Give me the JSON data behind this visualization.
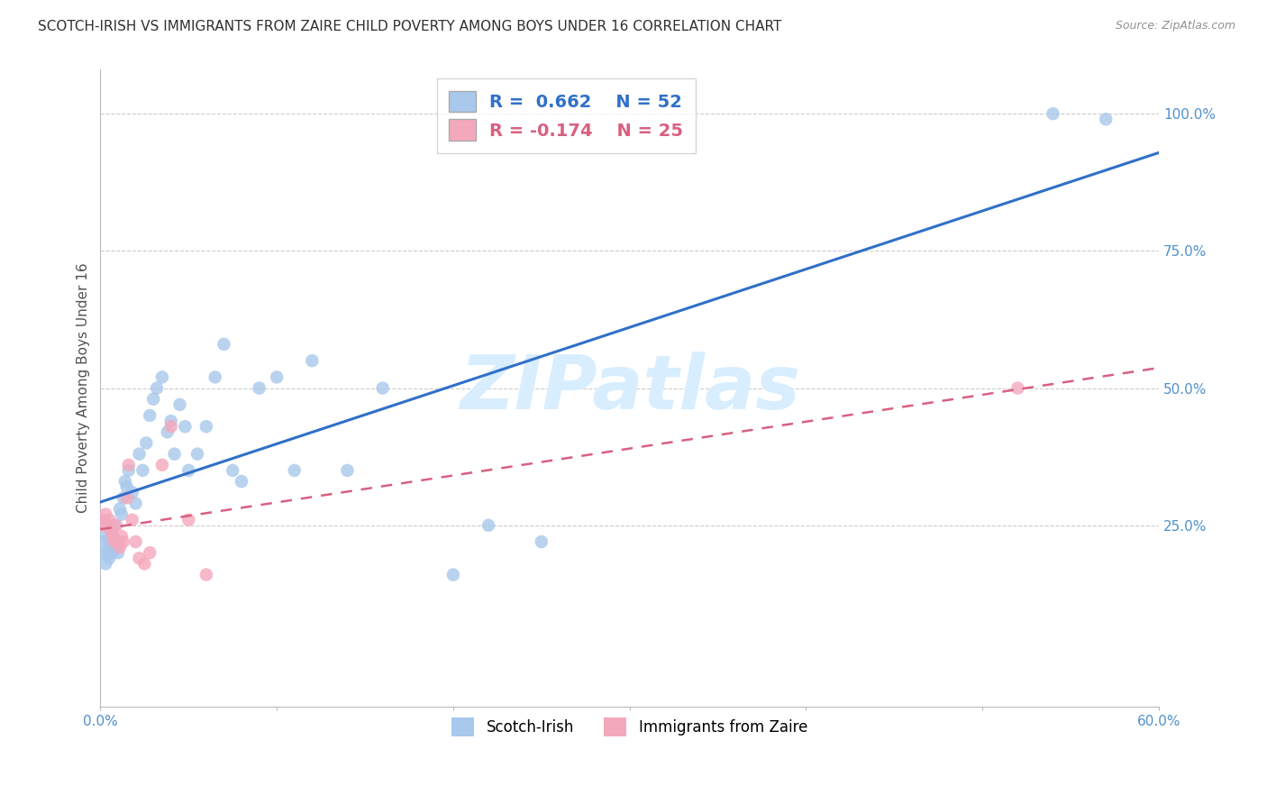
{
  "title": "SCOTCH-IRISH VS IMMIGRANTS FROM ZAIRE CHILD POVERTY AMONG BOYS UNDER 16 CORRELATION CHART",
  "source": "Source: ZipAtlas.com",
  "ylabel": "Child Poverty Among Boys Under 16",
  "xlim": [
    0.0,
    0.6
  ],
  "ylim": [
    -0.08,
    1.08
  ],
  "xticks": [
    0.0,
    0.1,
    0.2,
    0.3,
    0.4,
    0.5,
    0.6
  ],
  "yticks_right": [
    0.25,
    0.5,
    0.75,
    1.0
  ],
  "ytick_labels_right": [
    "25.0%",
    "50.0%",
    "75.0%",
    "100.0%"
  ],
  "r_blue": 0.662,
  "n_blue": 52,
  "r_pink": -0.174,
  "n_pink": 25,
  "scotch_irish_x": [
    0.001,
    0.002,
    0.003,
    0.003,
    0.004,
    0.005,
    0.005,
    0.006,
    0.006,
    0.007,
    0.007,
    0.008,
    0.009,
    0.01,
    0.011,
    0.012,
    0.013,
    0.014,
    0.015,
    0.016,
    0.018,
    0.02,
    0.022,
    0.024,
    0.026,
    0.028,
    0.03,
    0.032,
    0.035,
    0.038,
    0.04,
    0.042,
    0.045,
    0.048,
    0.05,
    0.055,
    0.06,
    0.065,
    0.07,
    0.075,
    0.08,
    0.09,
    0.1,
    0.11,
    0.12,
    0.14,
    0.16,
    0.2,
    0.22,
    0.25,
    0.54,
    0.57
  ],
  "scotch_irish_y": [
    0.2,
    0.22,
    0.18,
    0.23,
    0.2,
    0.22,
    0.19,
    0.21,
    0.24,
    0.2,
    0.23,
    0.25,
    0.21,
    0.2,
    0.28,
    0.27,
    0.3,
    0.33,
    0.32,
    0.35,
    0.31,
    0.29,
    0.38,
    0.35,
    0.4,
    0.45,
    0.48,
    0.5,
    0.52,
    0.42,
    0.44,
    0.38,
    0.47,
    0.43,
    0.35,
    0.38,
    0.43,
    0.52,
    0.58,
    0.35,
    0.33,
    0.5,
    0.52,
    0.35,
    0.55,
    0.35,
    0.5,
    0.16,
    0.25,
    0.22,
    1.0,
    0.99
  ],
  "zaire_x": [
    0.001,
    0.002,
    0.003,
    0.004,
    0.005,
    0.006,
    0.007,
    0.008,
    0.009,
    0.01,
    0.011,
    0.012,
    0.013,
    0.015,
    0.016,
    0.018,
    0.02,
    0.022,
    0.025,
    0.028,
    0.035,
    0.04,
    0.05,
    0.06,
    0.52
  ],
  "zaire_y": [
    0.26,
    0.25,
    0.27,
    0.25,
    0.26,
    0.24,
    0.23,
    0.22,
    0.25,
    0.22,
    0.21,
    0.23,
    0.22,
    0.3,
    0.36,
    0.26,
    0.22,
    0.19,
    0.18,
    0.2,
    0.36,
    0.43,
    0.26,
    0.16,
    0.5
  ],
  "blue_scatter_color": "#A8C8EC",
  "pink_scatter_color": "#F4A8BC",
  "blue_line_color": "#3070C8",
  "pink_line_color": "#D86080",
  "background_color": "#FFFFFF",
  "title_color": "#303030",
  "source_color": "#909090",
  "axis_label_color": "#505050",
  "right_tick_color": "#5090CC",
  "watermark_color": "#D8EEFF",
  "grid_color": "#CCCCCC"
}
